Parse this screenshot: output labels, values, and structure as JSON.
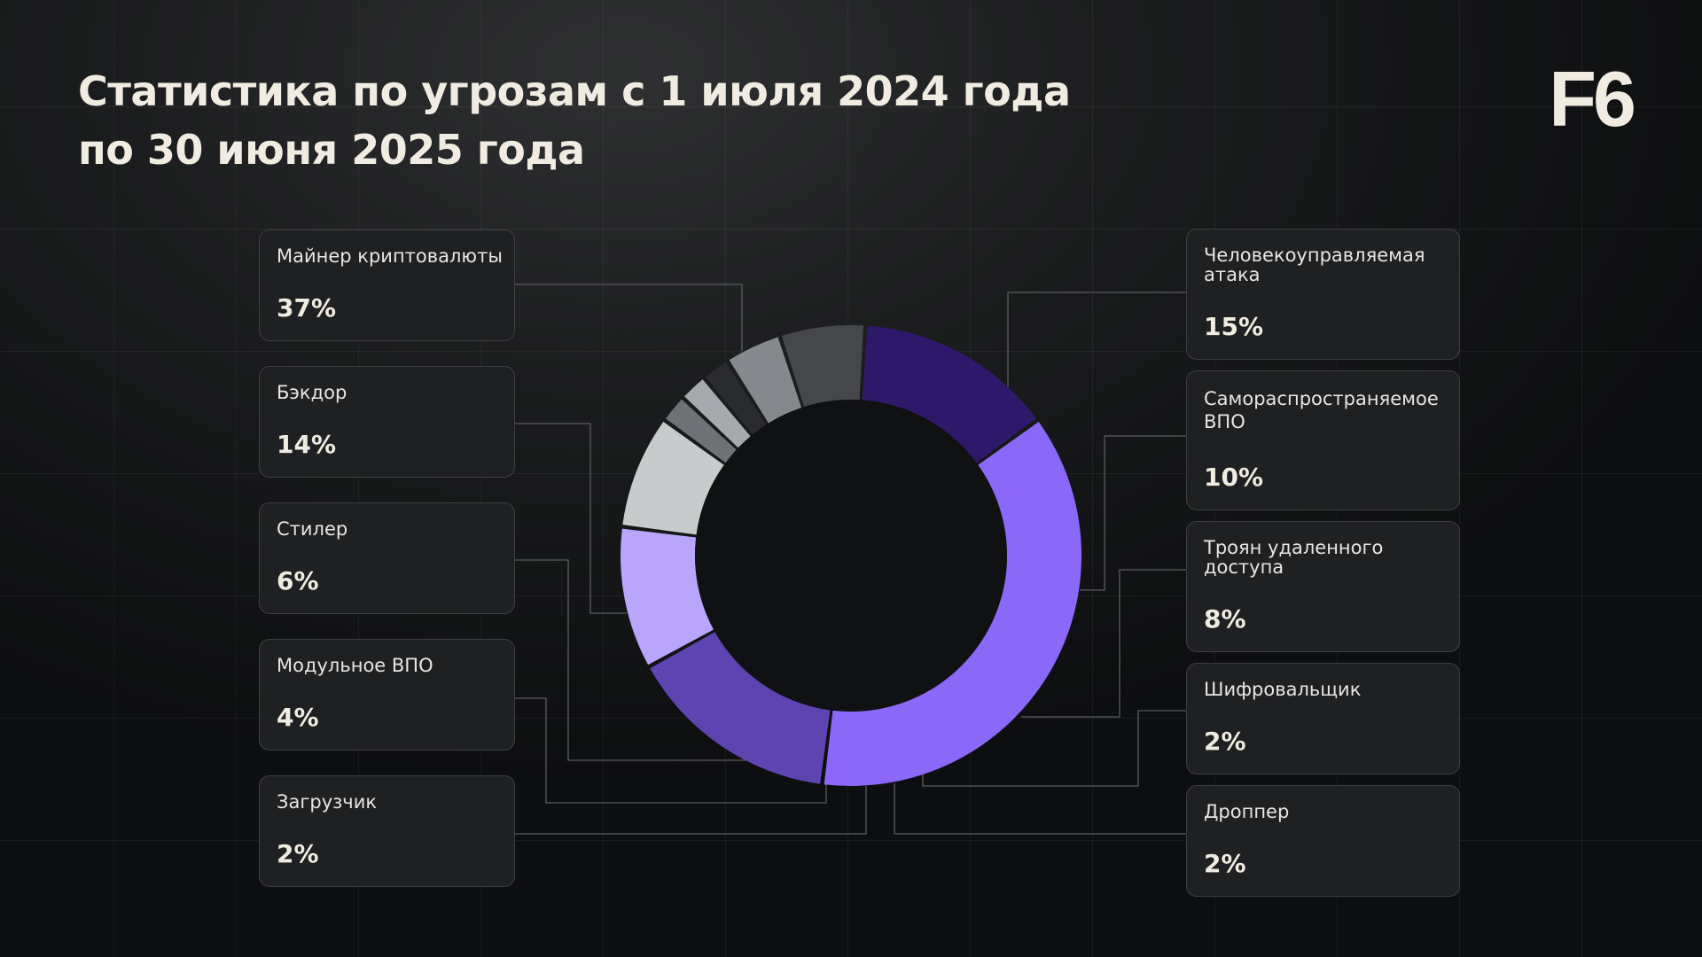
{
  "title": {
    "line1": "Статистика по угрозам с 1 июля 2024 года",
    "line2": "по 30 июня 2025 года"
  },
  "logo": "F6",
  "colors": {
    "background": "#101112",
    "card_background": "#1f2022",
    "card_border": "#3e3f42",
    "text": "#f1ece1"
  },
  "chart_data": {
    "type": "pie",
    "style": "donut",
    "slices": [
      {
        "id": "miner",
        "label": "Майнер криптовалюты",
        "value": 37,
        "value_label": "37%",
        "color": "#8c68f8"
      },
      {
        "id": "human",
        "label": "Человекоуправляемая атака",
        "value": 15,
        "value_label": "15%",
        "color": "#5d44b0"
      },
      {
        "id": "selfprop",
        "label": "Самораспространяемое ВПО",
        "value": 10,
        "value_label": "10%",
        "color": "#b9a6fb"
      },
      {
        "id": "rat",
        "label": "Троян удаленного доступа",
        "value": 8,
        "value_label": "8%",
        "color": "#c8cbcc"
      },
      {
        "id": "encryptor",
        "label": "Шифровальщик",
        "value": 2,
        "value_label": "2%",
        "color": "#6e7175"
      },
      {
        "id": "dropper",
        "label": "Дроппер",
        "value": 2,
        "value_label": "2%",
        "color": "#a6a9ad"
      },
      {
        "id": "loader",
        "label": "Загрузчик",
        "value": 2,
        "value_label": "2%",
        "color": "#2a2b2e"
      },
      {
        "id": "modular",
        "label": "Модульное ВПО",
        "value": 4,
        "value_label": "4%",
        "color": "#85888c"
      },
      {
        "id": "stealer",
        "label": "Стилер",
        "value": 6,
        "value_label": "6%",
        "color": "#45474b"
      },
      {
        "id": "backdoor",
        "label": "Бэкдор",
        "value": 14,
        "value_label": "14%",
        "color": "#2e1869"
      }
    ]
  },
  "cards": {
    "miner": {
      "label_lines": [
        "Майнер криптовалюты"
      ],
      "value": "37%"
    },
    "backdoor": {
      "label_lines": [
        "Бэкдор"
      ],
      "value": "14%"
    },
    "stealer": {
      "label_lines": [
        "Стилер"
      ],
      "value": "6%"
    },
    "modular": {
      "label_lines": [
        "Модульное ВПО"
      ],
      "value": "4%"
    },
    "loader": {
      "label_lines": [
        "Загрузчик"
      ],
      "value": "2%"
    },
    "human": {
      "label_lines": [
        "Человекоуправляемая",
        "атака"
      ],
      "value": "15%"
    },
    "selfprop": {
      "label_lines": [
        "Самораспространяемое",
        "ВПО"
      ],
      "value": "10%"
    },
    "rat": {
      "label_lines": [
        "Троян удаленного",
        "доступа"
      ],
      "value": "8%"
    },
    "encryptor": {
      "label_lines": [
        "Шифровальщик"
      ],
      "value": "2%"
    },
    "dropper": {
      "label_lines": [
        "Дроппер"
      ],
      "value": "2%"
    }
  }
}
